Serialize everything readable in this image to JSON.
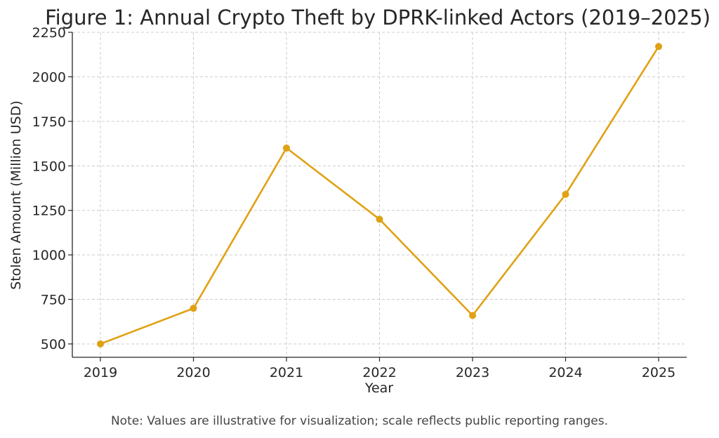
{
  "chart_data": {
    "type": "line",
    "title": "Figure 1: Annual Crypto Theft by DPRK-linked Actors (2019–2025)",
    "xlabel": "Year",
    "ylabel": "Stolen Amount (Million USD)",
    "categories": [
      "2019",
      "2020",
      "2021",
      "2022",
      "2023",
      "2024",
      "2025"
    ],
    "series": [
      {
        "values": [
          500,
          700,
          1600,
          1200,
          660,
          1340,
          2170
        ],
        "color": "#e0a112"
      }
    ],
    "ylim": [
      425,
      2250
    ],
    "yticks": [
      500,
      750,
      1000,
      1250,
      1500,
      1750,
      2000,
      2250
    ],
    "grid": true,
    "legend": "none"
  },
  "note": "Note: Values are illustrative for visualization; scale reflects public reporting ranges."
}
